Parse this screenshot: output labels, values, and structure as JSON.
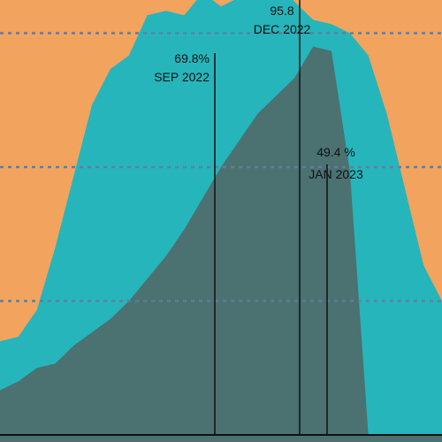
{
  "chart_data": {
    "type": "area",
    "title": "",
    "xlabel": "",
    "ylabel": "",
    "ylim": [
      0,
      100
    ],
    "grid": true,
    "gridlines": [
      30,
      60,
      90
    ],
    "x": [
      0,
      1,
      2,
      3,
      4,
      5,
      6,
      7,
      8,
      9,
      10,
      11,
      12,
      13,
      14,
      15,
      16,
      17,
      18,
      19,
      20,
      21,
      22,
      23,
      24
    ],
    "series": [
      {
        "values": [
          100,
          101,
          104,
          101,
          106,
          108,
          106,
          109,
          107,
          105,
          108,
          106,
          104,
          106,
          107,
          104,
          109,
          110,
          108,
          107,
          109,
          104,
          102,
          104,
          102
        ]
      },
      {
        "values": [
          21,
          22,
          28,
          42,
          58,
          74,
          82,
          85,
          94,
          95,
          94,
          99,
          96,
          98,
          102,
          102,
          97,
          93,
          92,
          90,
          85,
          72,
          55,
          38,
          30
        ]
      },
      {
        "values": [
          10,
          12,
          15,
          16,
          20,
          23,
          26,
          30,
          35,
          40,
          46,
          53,
          60,
          66,
          72,
          76,
          80,
          87,
          86,
          59,
          0,
          0,
          0,
          0,
          0
        ]
      }
    ],
    "colors": {
      "background_area": "#f2a35e",
      "area_2": "#26b5bb",
      "area_3": "#4b7171",
      "gridline": "#5f7ea0",
      "marker_line": "#111111"
    },
    "annotations": [
      {
        "x": 12,
        "value": "69.8%",
        "date": "SEP 2022"
      },
      {
        "x": 17,
        "value": "95.8",
        "date": "DEC 2022"
      },
      {
        "x": 18.6,
        "value": "49.4  %",
        "date": "JAN 2023"
      }
    ]
  }
}
